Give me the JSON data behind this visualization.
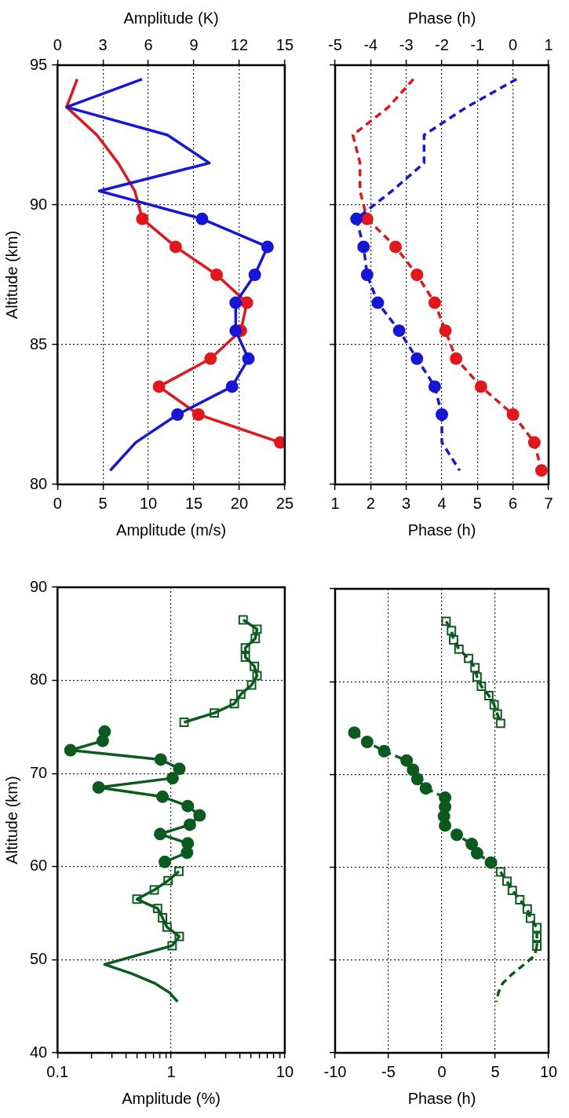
{
  "chart_data": [
    {
      "type": "line",
      "xlabel": "Amplitude (m/s)",
      "x2label": "Amplitude (K)",
      "ylabel": "Altitude (km)",
      "xlim": [
        0,
        25
      ],
      "xticks": [
        0,
        5,
        10,
        15,
        20,
        25
      ],
      "x2lim": [
        0,
        15
      ],
      "x2ticks": [
        0,
        3,
        6,
        9,
        12,
        15
      ],
      "ylim": [
        80,
        95
      ],
      "yticks": [
        80,
        85,
        90,
        95
      ],
      "grid": true,
      "series": [
        {
          "color": "#e3161c",
          "axis": "x2",
          "marker": "none",
          "line_style": "solid",
          "x": [
            1.3,
            0.6,
            2.6,
            4.0,
            5.1,
            5.6
          ],
          "values": [
            94.5,
            93.5,
            92.5,
            91.5,
            90.5,
            89.5
          ]
        },
        {
          "color": "#e3161c",
          "axis": "x2",
          "marker": "circle",
          "line_style": "solid",
          "x": [
            5.6,
            7.8,
            10.5,
            12.5,
            12.1,
            10.1,
            6.7,
            9.3,
            14.7
          ],
          "values": [
            89.5,
            88.5,
            87.5,
            86.5,
            85.5,
            84.5,
            83.5,
            82.5,
            81.5
          ]
        },
        {
          "color": "#1616d8",
          "marker": "none",
          "line_style": "solid",
          "x": [
            9.3,
            1.0,
            12.1,
            16.7,
            4.6,
            15.9
          ],
          "values": [
            94.5,
            93.5,
            92.5,
            91.5,
            90.5,
            89.5
          ]
        },
        {
          "color": "#1616d8",
          "marker": "circle",
          "line_style": "solid",
          "x": [
            15.9,
            23.1,
            21.7,
            19.6,
            19.6,
            21.0,
            19.2,
            13.2
          ],
          "values": [
            89.5,
            88.5,
            87.5,
            86.5,
            85.5,
            84.5,
            83.5,
            82.5
          ]
        },
        {
          "color": "#1616d8",
          "marker": "none",
          "line_style": "solid",
          "x": [
            13.2,
            8.6,
            5.8
          ],
          "values": [
            82.5,
            81.5,
            80.5
          ]
        }
      ]
    },
    {
      "type": "line",
      "xlabel": "Phase (h)",
      "x2label": "Phase (h)",
      "xlim": [
        1,
        7
      ],
      "xticks": [
        1,
        2,
        3,
        4,
        5,
        6,
        7
      ],
      "x2lim": [
        -5,
        1
      ],
      "x2ticks": [
        -5,
        -4,
        -3,
        -2,
        -1,
        0,
        1
      ],
      "ylim": [
        80,
        95
      ],
      "yticks": [
        80,
        85,
        90,
        95
      ],
      "grid": true,
      "tick_labels": "x",
      "series": [
        {
          "color": "#e3161c",
          "axis": "x2",
          "marker": "none",
          "line_style": "dashed",
          "x": [
            -2.8,
            -3.5,
            -4.5,
            -4.3,
            -4.3,
            -4.1
          ],
          "values": [
            94.5,
            93.5,
            92.5,
            91.5,
            90.5,
            89.5
          ]
        },
        {
          "color": "#e3161c",
          "axis": "x2",
          "marker": "circle",
          "line_style": "dashed",
          "x": [
            -4.1,
            -3.3,
            -2.7,
            -2.2,
            -1.9,
            -1.6,
            -0.9,
            0.0,
            0.6,
            0.8
          ],
          "values": [
            89.5,
            88.5,
            87.5,
            86.5,
            85.5,
            84.5,
            83.5,
            82.5,
            81.5,
            80.5
          ]
        },
        {
          "color": "#1616d8",
          "marker": "none",
          "line_style": "dashed",
          "x": [
            6.1,
            4.7,
            3.5,
            3.5,
            2.6,
            1.6
          ],
          "values": [
            94.5,
            93.5,
            92.5,
            91.5,
            90.5,
            89.5
          ]
        },
        {
          "color": "#1616d8",
          "marker": "circle",
          "line_style": "dashed",
          "x": [
            1.6,
            1.8,
            1.9,
            2.2,
            2.8,
            3.3,
            3.8,
            4.0
          ],
          "values": [
            89.5,
            88.5,
            87.5,
            86.5,
            85.5,
            84.5,
            83.5,
            82.5
          ]
        },
        {
          "color": "#1616d8",
          "marker": "none",
          "line_style": "dashed",
          "x": [
            4.0,
            4.0,
            4.5
          ],
          "values": [
            82.5,
            81.5,
            80.5
          ]
        }
      ]
    },
    {
      "type": "line",
      "xlabel": "Amplitude (%)",
      "ylabel": "Altitude (km)",
      "log": "x",
      "xlim": [
        0.1,
        10
      ],
      "xticks": [
        0.1,
        {
          "value": 0.2,
          "label": null
        },
        {
          "value": 0.3,
          "label": null
        },
        {
          "value": 0.4,
          "label": null
        },
        {
          "value": 0.5,
          "label": null
        },
        {
          "value": 0.6,
          "label": null
        },
        {
          "value": 0.7,
          "label": null
        },
        {
          "value": 0.8,
          "label": null
        },
        {
          "value": 0.9,
          "label": null
        },
        1,
        {
          "value": 2,
          "label": null
        },
        {
          "value": 3,
          "label": null
        },
        {
          "value": 4,
          "label": null
        },
        {
          "value": 5,
          "label": null
        },
        {
          "value": 6,
          "label": null
        },
        {
          "value": 7,
          "label": null
        },
        {
          "value": 8,
          "label": null
        },
        {
          "value": 9,
          "label": null
        },
        10
      ],
      "ylim": [
        40,
        90
      ],
      "yticks": [
        40,
        50,
        60,
        70,
        80,
        90
      ],
      "grid": true,
      "series": [
        {
          "color": "#0b5a1e",
          "marker": "square",
          "line_style": "solid",
          "x": [
            4.3,
            5.7,
            5.5,
            4.5,
            4.5,
            5.4,
            5.7,
            5.1,
            4.1,
            3.6,
            2.4,
            1.3
          ],
          "values": [
            86.5,
            85.5,
            84.5,
            83.5,
            82.5,
            81.5,
            80.5,
            79.5,
            78.5,
            77.5,
            76.5,
            75.5
          ]
        },
        {
          "color": "#0b5a1e",
          "marker": "circle",
          "line_style": "solid",
          "x": [
            0.26,
            0.25,
            0.13,
            0.81,
            1.18,
            1.03,
            0.23,
            0.84,
            1.4,
            1.78,
            1.46,
            0.8,
            1.4,
            1.38,
            0.88
          ],
          "values": [
            74.5,
            73.5,
            72.5,
            71.5,
            70.5,
            69.5,
            68.5,
            67.5,
            66.5,
            65.5,
            64.5,
            63.5,
            62.5,
            61.5,
            60.5
          ]
        },
        {
          "color": "#0b5a1e",
          "marker": "square",
          "line_style": "solid",
          "x": [
            1.17,
            0.94,
            0.71,
            0.5,
            0.76,
            0.84,
            0.92,
            1.18,
            1.02
          ],
          "values": [
            59.5,
            58.5,
            57.5,
            56.5,
            55.5,
            54.5,
            53.5,
            52.5,
            51.5
          ]
        },
        {
          "color": "#0b5a1e",
          "marker": "none",
          "line_style": "solid",
          "x": [
            1.02,
            0.51,
            0.26,
            0.45,
            0.71,
            0.96,
            1.14
          ],
          "values": [
            51.5,
            50.5,
            49.5,
            48.5,
            47.5,
            46.5,
            45.5
          ]
        }
      ]
    },
    {
      "type": "line",
      "xlabel": "Phase (h)",
      "xlim": [
        -10,
        10
      ],
      "xticks": [
        -10,
        -5,
        0,
        5,
        10
      ],
      "ylim": [
        40,
        90
      ],
      "yticks": [
        40,
        50,
        60,
        70,
        80,
        90
      ],
      "grid": true,
      "tick_labels": "x",
      "series": [
        {
          "color": "#0b5a1e",
          "marker": "square",
          "line_style": "dashed",
          "x": [
            0.4,
            0.9,
            1.1,
            1.6,
            2.5,
            3.1,
            3.3,
            3.7,
            4.4,
            4.9,
            5.2,
            5.5
          ],
          "values": [
            86.5,
            85.5,
            84.5,
            83.5,
            82.5,
            81.5,
            80.5,
            79.5,
            78.5,
            77.5,
            76.5,
            75.5
          ]
        },
        {
          "color": "#0b5a1e",
          "marker": "circle",
          "line_style": "dashed",
          "x": [
            -8.2,
            -7.0,
            -5.4,
            -3.3,
            -2.7,
            -2.3,
            -1.5,
            0.3,
            0.3,
            0.2,
            0.3,
            1.4,
            2.8,
            3.3,
            4.6
          ],
          "values": [
            74.5,
            73.5,
            72.5,
            71.5,
            70.5,
            69.5,
            68.5,
            67.5,
            66.5,
            65.5,
            64.5,
            63.5,
            62.5,
            61.5,
            60.5
          ]
        },
        {
          "color": "#0b5a1e",
          "marker": "square",
          "line_style": "dashed",
          "x": [
            5.5,
            6.1,
            6.6,
            7.3,
            8.0,
            8.3,
            8.9,
            8.9,
            8.9
          ],
          "values": [
            59.5,
            58.5,
            57.5,
            56.5,
            55.5,
            54.5,
            53.5,
            52.5,
            51.5
          ]
        },
        {
          "color": "#0b5a1e",
          "marker": "none",
          "line_style": "dashed",
          "x": [
            8.9,
            8.7,
            7.7,
            6.6,
            5.7,
            5.3,
            5.1
          ],
          "values": [
            51.5,
            50.5,
            49.5,
            48.5,
            47.5,
            46.5,
            45.5
          ]
        }
      ]
    }
  ]
}
